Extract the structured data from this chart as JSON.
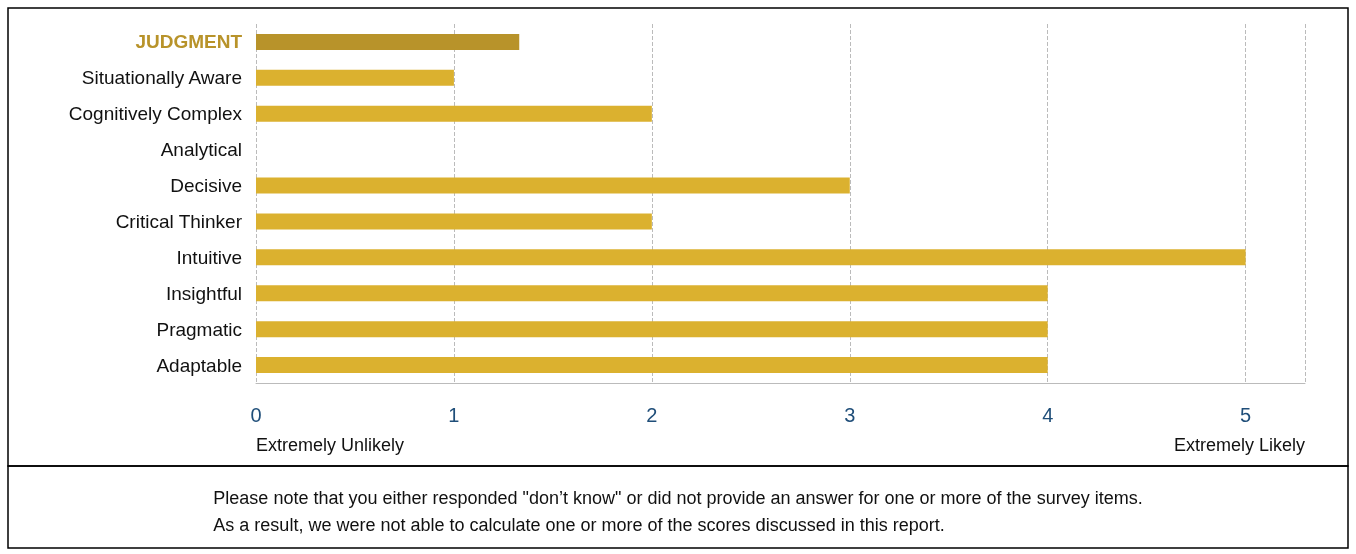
{
  "chart_data": {
    "type": "bar",
    "orientation": "horizontal",
    "categories": [
      "JUDGMENT",
      "Situationally Aware",
      "Cognitively Complex",
      "Analytical",
      "Decisive",
      "Critical Thinker",
      "Intuitive",
      "Insightful",
      "Pragmatic",
      "Adaptable"
    ],
    "values": [
      1.33,
      1,
      2,
      null,
      3,
      2,
      5,
      4,
      4,
      4
    ],
    "colors": [
      "#b8932a",
      "#dbb12f",
      "#dbb12f",
      "#dbb12f",
      "#dbb12f",
      "#dbb12f",
      "#dbb12f",
      "#dbb12f",
      "#dbb12f",
      "#dbb12f"
    ],
    "xlim": [
      0,
      5.3
    ],
    "xticks": [
      0,
      1,
      2,
      3,
      4,
      5
    ],
    "grid": "x",
    "line_style": "dashed",
    "annotations": [
      "Extremely Unlikely",
      "Extremely Likely",
      "Please note that you either responded \"don’t know\" or did not provide an answer for one or more of the survey items.\nAs a result, we were not able to calculate one or more of the scores discussed in this report."
    ]
  }
}
